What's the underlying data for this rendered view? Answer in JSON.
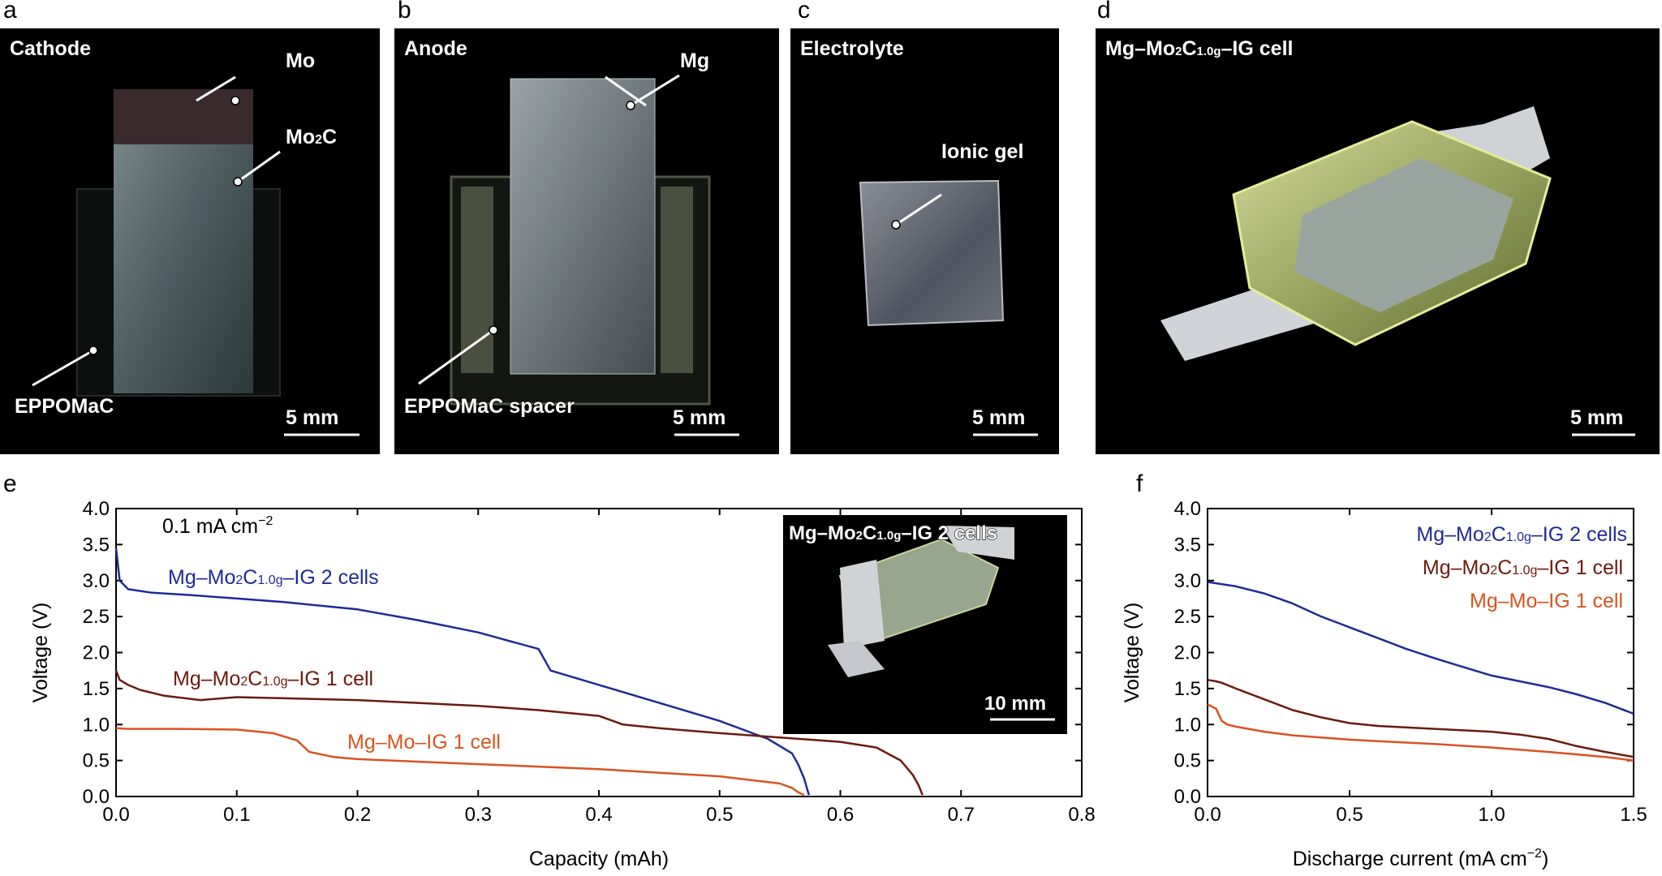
{
  "panels": {
    "a": {
      "letter": "a",
      "title": "Cathode",
      "labels": {
        "mo": "Mo",
        "mo2c_pre": "Mo",
        "mo2c_sub": "2",
        "mo2c_post": "C",
        "eppomac": "EPPOMaC"
      },
      "scale": "5 mm"
    },
    "b": {
      "letter": "b",
      "title": "Anode",
      "labels": {
        "mg": "Mg",
        "spacer": "EPPOMaC spacer"
      },
      "scale": "5 mm"
    },
    "c": {
      "letter": "c",
      "title": "Electrolyte",
      "labels": {
        "gel": "Ionic gel"
      },
      "scale": "5 mm"
    },
    "d": {
      "letter": "d",
      "title_parts": {
        "pre": "Mg–Mo",
        "sub1": "2",
        "mid": "C",
        "sub2": "1.0g",
        "post": "–IG cell"
      },
      "scale": "5 mm"
    },
    "e": {
      "letter": "e"
    },
    "f": {
      "letter": "f"
    }
  },
  "inset_e": {
    "title_parts": {
      "pre": "Mg–Mo",
      "sub1": "2",
      "mid": "C",
      "sub2": "1.0g",
      "post": "–IG 2 cells"
    },
    "scale": "10 mm"
  },
  "colors": {
    "blue": "#1f2a9a",
    "brown": "#6b1a0e",
    "orange": "#d9531e"
  },
  "chart_data": [
    {
      "type": "line",
      "panel": "e",
      "xlabel": "Capacity (mAh)",
      "ylabel": "Voltage (V)",
      "xlim": [
        0,
        0.8
      ],
      "ylim": [
        0,
        4.0
      ],
      "xticks": [
        "0.0",
        "0.1",
        "0.2",
        "0.3",
        "0.4",
        "0.5",
        "0.6",
        "0.7",
        "0.8"
      ],
      "yticks": [
        "0.0",
        "0.5",
        "1.0",
        "1.5",
        "2.0",
        "2.5",
        "3.0",
        "3.5",
        "4.0"
      ],
      "annotation": {
        "text": "0.1 mA cm",
        "sup": "−2"
      },
      "series": [
        {
          "name": "Mg–Mo2C1.0g–IG 2 cells",
          "label_parts": {
            "pre": "Mg–Mo",
            "sub1": "2",
            "mid": "C",
            "sub2": "1.0g",
            "post": "–IG 2 cells"
          },
          "color": "#1f2a9a",
          "x": [
            0,
            0.003,
            0.01,
            0.03,
            0.06,
            0.1,
            0.14,
            0.2,
            0.25,
            0.3,
            0.35,
            0.36,
            0.4,
            0.45,
            0.5,
            0.54,
            0.56,
            0.565,
            0.57,
            0.574
          ],
          "y": [
            3.45,
            3.0,
            2.88,
            2.83,
            2.8,
            2.75,
            2.7,
            2.6,
            2.45,
            2.28,
            2.05,
            1.75,
            1.55,
            1.3,
            1.05,
            0.8,
            0.6,
            0.45,
            0.25,
            0.02
          ]
        },
        {
          "name": "Mg–Mo2C1.0g–IG 1 cell",
          "label_parts": {
            "pre": "Mg–Mo",
            "sub1": "2",
            "mid": "C",
            "sub2": "1.0g",
            "post": "–IG 1 cell"
          },
          "color": "#6b1a0e",
          "x": [
            0,
            0.003,
            0.01,
            0.02,
            0.04,
            0.07,
            0.1,
            0.15,
            0.2,
            0.25,
            0.3,
            0.35,
            0.4,
            0.42,
            0.45,
            0.5,
            0.55,
            0.6,
            0.63,
            0.65,
            0.66,
            0.665,
            0.668
          ],
          "y": [
            1.75,
            1.62,
            1.55,
            1.48,
            1.4,
            1.34,
            1.38,
            1.36,
            1.34,
            1.3,
            1.26,
            1.2,
            1.12,
            1.0,
            0.95,
            0.88,
            0.82,
            0.76,
            0.68,
            0.5,
            0.3,
            0.15,
            0.02
          ]
        },
        {
          "name": "Mg–Mo–IG 1 cell",
          "label_parts": {
            "pre": "Mg–Mo–IG 1 cell"
          },
          "color": "#d9531e",
          "x": [
            0,
            0.01,
            0.05,
            0.1,
            0.13,
            0.15,
            0.16,
            0.18,
            0.2,
            0.3,
            0.4,
            0.5,
            0.55,
            0.56,
            0.565,
            0.57
          ],
          "y": [
            0.95,
            0.94,
            0.94,
            0.93,
            0.88,
            0.78,
            0.62,
            0.55,
            0.52,
            0.45,
            0.38,
            0.28,
            0.18,
            0.12,
            0.06,
            0.02
          ]
        }
      ]
    },
    {
      "type": "line",
      "panel": "f",
      "xlabel": "Discharge current (mA cm",
      "xlabel_sup": "−2",
      "xlabel_post": ")",
      "ylabel": "Voltage (V)",
      "xlim": [
        0,
        1.5
      ],
      "ylim": [
        0,
        4.0
      ],
      "xticks": [
        "0.0",
        "0.5",
        "1.0",
        "1.5"
      ],
      "yticks": [
        "0.0",
        "0.5",
        "1.0",
        "1.5",
        "2.0",
        "2.5",
        "3.0",
        "3.5",
        "4.0"
      ],
      "series": [
        {
          "name": "Mg–Mo2C1.0g–IG 2 cells",
          "label_parts": {
            "pre": "Mg–Mo",
            "sub1": "2",
            "mid": "C",
            "sub2": "1.0g",
            "post": "–IG 2 cells"
          },
          "color": "#1f2a9a",
          "x": [
            0,
            0.1,
            0.2,
            0.3,
            0.4,
            0.5,
            0.6,
            0.7,
            0.8,
            0.9,
            1.0,
            1.1,
            1.2,
            1.3,
            1.4,
            1.5
          ],
          "y": [
            2.98,
            2.92,
            2.82,
            2.68,
            2.5,
            2.35,
            2.2,
            2.05,
            1.92,
            1.8,
            1.68,
            1.6,
            1.52,
            1.42,
            1.3,
            1.15
          ]
        },
        {
          "name": "Mg–Mo2C1.0g–IG 1 cell",
          "label_parts": {
            "pre": "Mg–Mo",
            "sub1": "2",
            "mid": "C",
            "sub2": "1.0g",
            "post": "–IG 1 cell"
          },
          "color": "#6b1a0e",
          "x": [
            0,
            0.03,
            0.05,
            0.1,
            0.2,
            0.3,
            0.4,
            0.5,
            0.6,
            0.8,
            1.0,
            1.1,
            1.2,
            1.3,
            1.4,
            1.5
          ],
          "y": [
            1.62,
            1.6,
            1.58,
            1.5,
            1.35,
            1.2,
            1.1,
            1.02,
            0.98,
            0.94,
            0.9,
            0.86,
            0.8,
            0.7,
            0.62,
            0.55
          ]
        },
        {
          "name": "Mg–Mo–IG 1 cell",
          "label_parts": {
            "pre": "Mg–Mo–IG 1 cell"
          },
          "color": "#d9531e",
          "x": [
            0,
            0.03,
            0.05,
            0.07,
            0.1,
            0.2,
            0.3,
            0.4,
            0.5,
            0.6,
            0.8,
            1.0,
            1.2,
            1.4,
            1.5
          ],
          "y": [
            1.28,
            1.22,
            1.05,
            1.0,
            0.97,
            0.9,
            0.85,
            0.82,
            0.79,
            0.77,
            0.73,
            0.68,
            0.62,
            0.55,
            0.5
          ]
        }
      ]
    }
  ]
}
